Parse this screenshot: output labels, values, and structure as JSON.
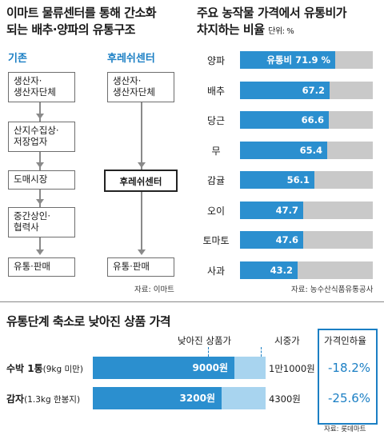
{
  "flow": {
    "title_line1": "이마트 물류센터를 통해 간소화",
    "title_line2": "되는 배추·양파의 유통구조",
    "legacy": {
      "header": "기존",
      "steps": [
        [
          "생산자·",
          "생산자단체"
        ],
        [
          "산지수집상·",
          "저장업자"
        ],
        [
          "도매시장"
        ],
        [
          "중간상인·",
          "협력사"
        ],
        [
          "유통·판매"
        ]
      ]
    },
    "fresh": {
      "header": "후레쉬센터",
      "steps": [
        [
          "생산자·",
          "생산자단체"
        ],
        [
          "후레쉬센터"
        ],
        [
          "유통·판매"
        ]
      ]
    },
    "source": "자료: 이마트"
  },
  "chart_data": [
    {
      "type": "bar",
      "title": "주요 농작물 가격에서 유통비가",
      "title_line2": "차지하는 비율",
      "unit": "단위: %",
      "categories": [
        "양파",
        "배추",
        "당근",
        "무",
        "감귤",
        "오이",
        "토마토",
        "사과"
      ],
      "values": [
        71.9,
        67.2,
        66.6,
        65.4,
        56.1,
        47.7,
        47.6,
        43.2
      ],
      "value_labels": [
        "유통비 71.9 %",
        "67.2",
        "66.6",
        "65.4",
        "56.1",
        "47.7",
        "47.6",
        "43.2"
      ],
      "ylim": [
        0,
        100
      ],
      "colors": {
        "fill": "#2b8fcf",
        "background": "#c9c9c9"
      },
      "source": "자료: 농수산식품유통공사"
    },
    {
      "type": "bar",
      "title": "유통단계 축소로 낮아진 상품 가격",
      "col_reduced": "낮아진 상품가",
      "col_market": "시중가",
      "col_rate": "가격인하율",
      "rows": [
        {
          "label": "수박 1통",
          "sub": "(9kg 미만)",
          "reduced_label": "9000원",
          "market_label": "1만1000원",
          "reduced": 9000,
          "market": 11000,
          "rate": "-18.2%"
        },
        {
          "label": "감자",
          "sub": "(1.3kg 한봉지)",
          "reduced_label": "3200원",
          "market_label": "4300원",
          "reduced": 3200,
          "market": 4300,
          "rate": "-25.6%"
        }
      ],
      "colors": {
        "reduced": "#2b8fcf",
        "market": "#a8d4ef",
        "rate": "#1b7fc4"
      },
      "source": "자료: 롯데마트"
    }
  ]
}
